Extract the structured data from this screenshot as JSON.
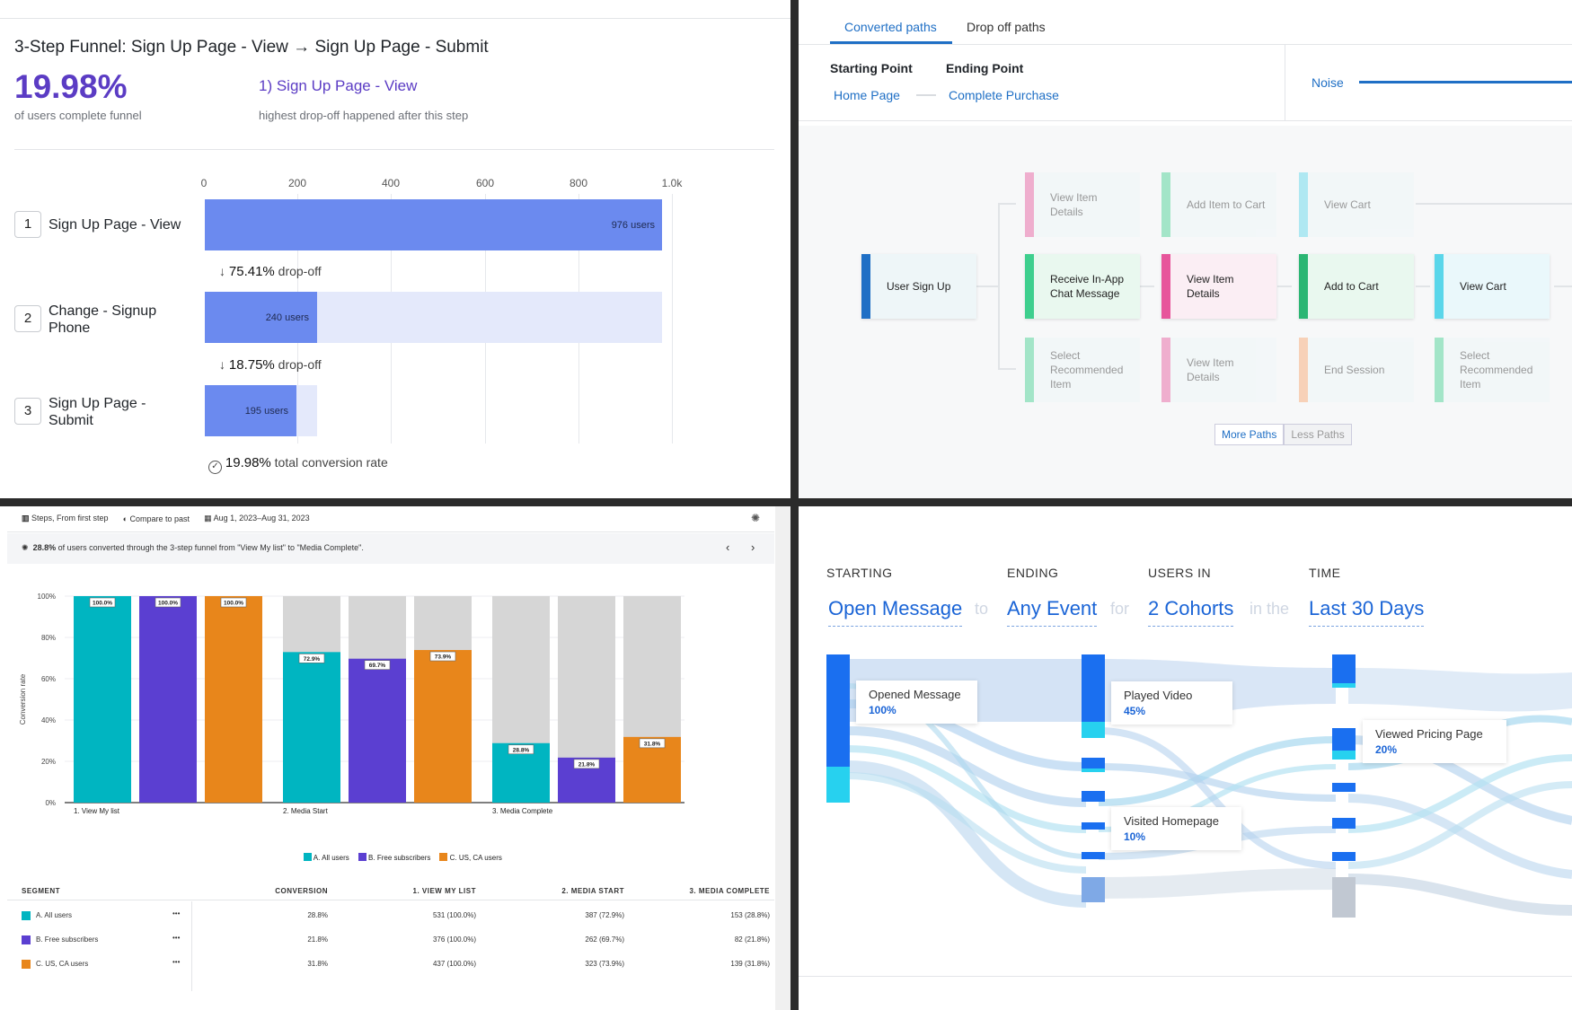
{
  "funnel": {
    "title": "3-Step Funnel: Sign Up Page - View → Sign Up Page - Submit",
    "complete_pct": "19.98%",
    "complete_label": "of users complete funnel",
    "dropoff_step": "1) Sign Up Page - View",
    "dropoff_label": "highest drop-off happened after this step",
    "axis_ticks": [
      "0",
      "200",
      "400",
      "600",
      "800",
      "1.0k"
    ],
    "steps": [
      {
        "num": "1",
        "label": "Sign Up Page - View",
        "users": 976,
        "users_label": "976 users"
      },
      {
        "num": "2",
        "label": "Change - Signup Phone",
        "users": 240,
        "users_label": "240 users"
      },
      {
        "num": "3",
        "label": "Sign Up Page - Submit",
        "users": 195,
        "users_label": "195 users"
      }
    ],
    "dropoffs": [
      {
        "pct": "75.41%",
        "label": "drop-off"
      },
      {
        "pct": "18.75%",
        "label": "drop-off"
      }
    ],
    "total_pct": "19.98%",
    "total_label": "total conversion rate",
    "icons": {
      "check": "check-circle-icon",
      "arrow": "arrow-down-icon"
    }
  },
  "paths": {
    "tabs": [
      "Converted paths",
      "Drop off paths"
    ],
    "starting_label": "Starting Point",
    "starting_value": "Home Page",
    "ending_label": "Ending Point",
    "ending_value": "Complete Purchase",
    "noise_label": "Noise",
    "root": "User Sign Up",
    "nodes": {
      "r0c0": "View Item Details",
      "r0c1": "Add Item to Cart",
      "r0c2": "View Cart",
      "r1c0": "Receive In-App Chat Message",
      "r1c1": "View Item Details",
      "r1c2": "Add to Cart",
      "r1c3": "View Cart",
      "r2c0": "Select Recommended Item",
      "r2c1": "View Item Details",
      "r2c2": "End Session",
      "r2c3": "Select Recommended Item"
    },
    "more_paths": "More Paths",
    "less_paths": "Less Paths",
    "colors": {
      "blue": "#1f6fc5",
      "green": "#3ecf8e",
      "pink": "#e7559b",
      "cyan": "#5ad6ea",
      "orange": "#f7b184"
    }
  },
  "comparison": {
    "toolbar": {
      "steps": "Steps, From first step",
      "compare": "Compare to past",
      "date": "Aug 1, 2023–Aug 31, 2023"
    },
    "insight_pct": "28.8%",
    "insight_text": "of users converted through the 3-step funnel from \"View My list\" to \"Media Complete\".",
    "y_axis_label": "Conversion rate",
    "y_ticks": [
      "100%",
      "80%",
      "60%",
      "40%",
      "20%",
      "0%"
    ],
    "legend": [
      "A. All users",
      "B. Free subscribers",
      "C. US, CA users"
    ],
    "colors": [
      "#00b5c1",
      "#5b3fd1",
      "#e8861b"
    ],
    "table_headers": [
      "SEGMENT",
      "CONVERSION",
      "1. VIEW MY LIST",
      "2. MEDIA START",
      "3. MEDIA COMPLETE"
    ],
    "table_rows": [
      [
        "A. All users",
        "28.8%",
        "531 (100.0%)",
        "387 (72.9%)",
        "153 (28.8%)"
      ],
      [
        "B. Free subscribers",
        "21.8%",
        "376 (100.0%)",
        "262 (69.7%)",
        "82 (21.8%)"
      ],
      [
        "C. US, CA users",
        "31.8%",
        "437 (100.0%)",
        "323 (73.9%)",
        "139 (31.8%)"
      ]
    ],
    "more_icon": "•••"
  },
  "chart_data": {
    "type": "bar",
    "title": "",
    "xlabel": "",
    "ylabel": "Conversion rate",
    "ylim": [
      0,
      100
    ],
    "categories": [
      "1. View My list",
      "2. Media Start",
      "3. Media Complete"
    ],
    "series": [
      {
        "name": "A. All users",
        "values": [
          100.0,
          72.9,
          28.8
        ],
        "labels": [
          "100.0%",
          "72.9%",
          "28.8%"
        ]
      },
      {
        "name": "B. Free subscribers",
        "values": [
          100.0,
          69.7,
          21.8
        ],
        "labels": [
          "100.0%",
          "69.7%",
          "21.8%"
        ]
      },
      {
        "name": "C. US, CA users",
        "values": [
          100.0,
          73.9,
          31.8
        ],
        "labels": [
          "100.0%",
          "73.9%",
          "31.8%"
        ]
      }
    ]
  },
  "journeys": {
    "starting_label": "STARTING",
    "starting_value": "Open Message",
    "to": "to",
    "ending_label": "ENDING",
    "ending_value": "Any Event",
    "for": "for",
    "users_label": "USERS IN",
    "users_value": "2 Cohorts",
    "in_the": "in the",
    "time_label": "TIME",
    "time_value": "Last 30 Days",
    "tooltips": [
      {
        "name": "Opened Message",
        "pct": "100%"
      },
      {
        "name": "Played Video",
        "pct": "45%"
      },
      {
        "name": "Visited Homepage",
        "pct": "10%"
      },
      {
        "name": "Viewed Pricing Page",
        "pct": "20%"
      }
    ]
  }
}
